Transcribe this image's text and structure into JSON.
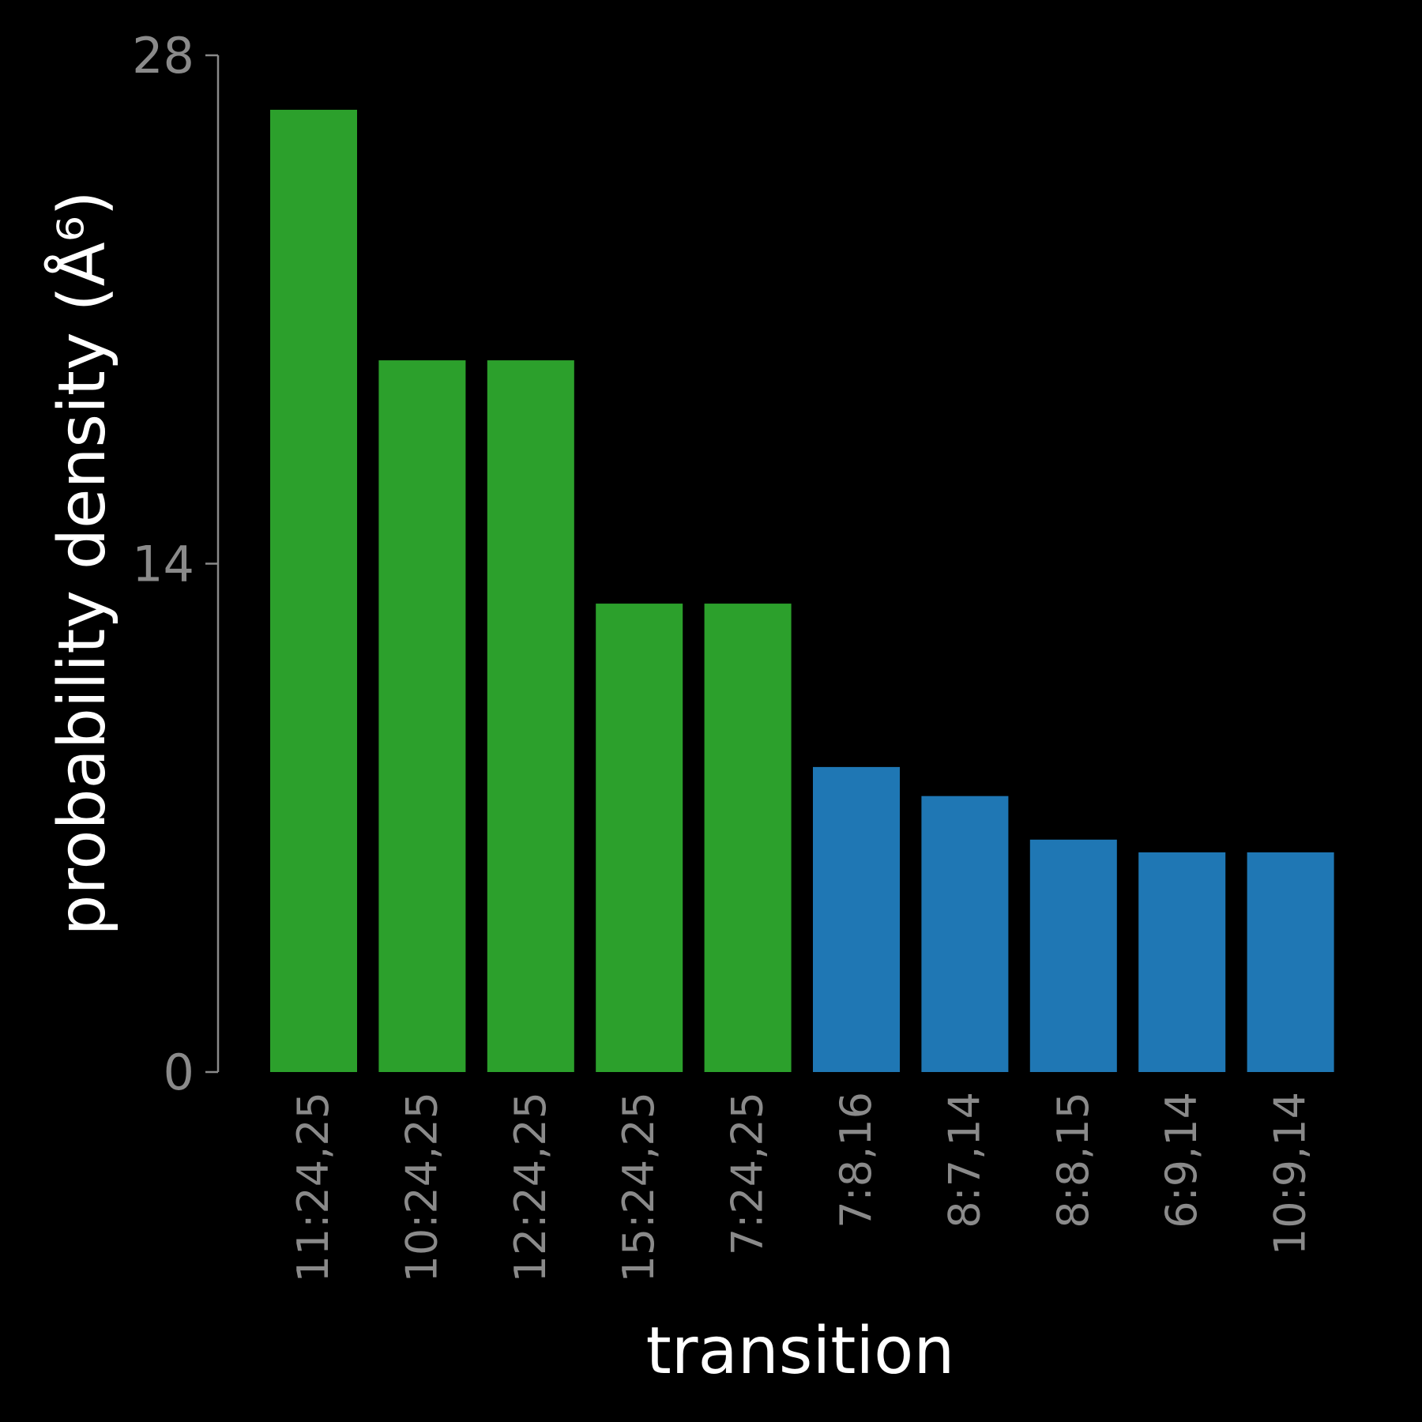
{
  "chart_data": {
    "type": "bar",
    "title": "",
    "xlabel": "transition",
    "ylabel": "probability density (Å⁶)",
    "ylim": [
      0,
      28
    ],
    "yticks": [
      "0",
      "14",
      "28"
    ],
    "grid": false,
    "categories": [
      "11:24,25",
      "10:24,25",
      "12:24,25",
      "15:24,25",
      "7:24,25",
      "7:8,16",
      "8:7,14",
      "8:8,15",
      "6:9,14",
      "10:9,14"
    ],
    "values": [
      26.5,
      19.6,
      19.6,
      12.9,
      12.9,
      8.4,
      7.6,
      6.4,
      6.05,
      6.05
    ],
    "colors": [
      "#2ca02c",
      "#2ca02c",
      "#2ca02c",
      "#2ca02c",
      "#2ca02c",
      "#1f77b4",
      "#1f77b4",
      "#1f77b4",
      "#1f77b4",
      "#1f77b4"
    ]
  }
}
